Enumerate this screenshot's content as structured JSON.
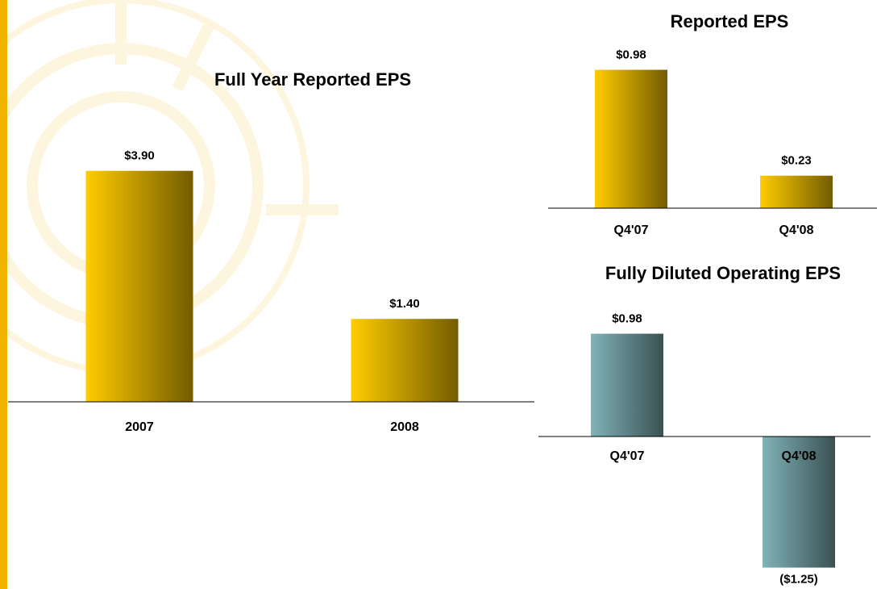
{
  "chart_data": [
    {
      "type": "bar",
      "title": "Full Year Reported EPS",
      "categories": [
        "2007",
        "2008"
      ],
      "values": [
        3.9,
        1.4
      ],
      "value_labels": [
        "$3.90",
        "$1.40"
      ],
      "color": "#ffcc00",
      "ylim": [
        0,
        5
      ]
    },
    {
      "type": "bar",
      "title": "Reported EPS",
      "categories": [
        "Q4'07",
        "Q4'08"
      ],
      "values": [
        0.98,
        0.23
      ],
      "value_labels": [
        "$0.98",
        "$0.23"
      ],
      "color": "#ffcc00",
      "ylim": [
        0,
        1.2
      ]
    },
    {
      "type": "bar",
      "title": "Fully Diluted Operating EPS",
      "categories": [
        "Q4'07",
        "Q4'08"
      ],
      "values": [
        0.98,
        -1.25
      ],
      "value_labels": [
        "$0.98",
        "($1.25)"
      ],
      "color": "#80b3b8",
      "ylim": [
        -1.3,
        1.2
      ]
    }
  ]
}
